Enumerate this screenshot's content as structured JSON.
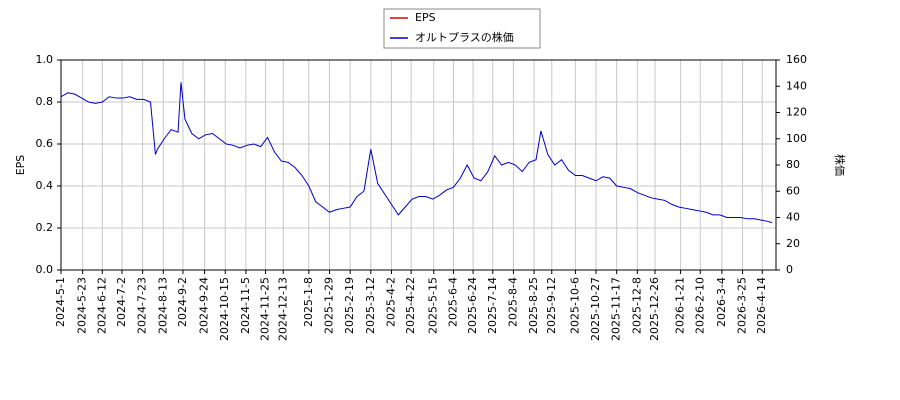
{
  "chart_data": {
    "type": "line",
    "x": [
      "2024-5-1",
      "2024-5-8",
      "2024-5-15",
      "2024-5-22",
      "2024-5-29",
      "2024-6-5",
      "2024-6-12",
      "2024-6-19",
      "2024-6-26",
      "2024-7-3",
      "2024-7-10",
      "2024-7-17",
      "2024-7-24",
      "2024-7-31",
      "2024-8-5",
      "2024-8-7",
      "2024-8-14",
      "2024-8-21",
      "2024-8-28",
      "2024-8-31",
      "2024-9-4",
      "2024-9-11",
      "2024-9-18",
      "2024-9-25",
      "2024-10-2",
      "2024-10-9",
      "2024-10-16",
      "2024-10-23",
      "2024-10-30",
      "2024-11-6",
      "2024-11-13",
      "2024-11-20",
      "2024-11-27",
      "2024-12-4",
      "2024-12-11",
      "2024-12-18",
      "2024-12-25",
      "2025-1-1",
      "2025-1-8",
      "2025-1-15",
      "2025-1-22",
      "2025-1-29",
      "2025-2-5",
      "2025-2-12",
      "2025-2-19",
      "2025-2-26",
      "2025-3-5",
      "2025-3-12",
      "2025-3-19",
      "2025-3-26",
      "2025-4-2",
      "2025-4-9",
      "2025-4-16",
      "2025-4-23",
      "2025-4-30",
      "2025-5-7",
      "2025-5-14",
      "2025-5-21",
      "2025-5-28",
      "2025-6-4",
      "2025-6-11",
      "2025-6-18",
      "2025-6-25",
      "2025-7-2",
      "2025-7-9",
      "2025-7-16",
      "2025-7-23",
      "2025-7-30",
      "2025-8-6",
      "2025-8-13",
      "2025-8-20",
      "2025-8-27",
      "2025-9-1",
      "2025-9-8",
      "2025-9-15",
      "2025-9-22",
      "2025-9-29",
      "2025-10-6",
      "2025-10-13",
      "2025-10-20",
      "2025-10-27",
      "2025-11-3",
      "2025-11-10",
      "2025-11-17",
      "2025-11-24",
      "2025-12-1",
      "2025-12-8",
      "2025-12-15",
      "2025-12-22",
      "2025-12-29",
      "2026-1-5",
      "2026-1-12",
      "2026-1-19",
      "2026-1-26",
      "2026-2-2",
      "2026-2-9",
      "2026-2-16",
      "2026-2-23",
      "2026-3-2",
      "2026-3-9",
      "2026-3-16",
      "2026-3-23",
      "2026-3-30",
      "2026-4-6",
      "2026-4-13",
      "2026-4-20",
      "2026-4-24"
    ],
    "series": [
      {
        "name": "EPS",
        "color": "#dd0000",
        "values": [
          null,
          null,
          null,
          null,
          null,
          null,
          null,
          null,
          null,
          null,
          null,
          null,
          null,
          null,
          null,
          null,
          null,
          null,
          null,
          null,
          null,
          null,
          null,
          null,
          null,
          null,
          null,
          null,
          null,
          null,
          null,
          null,
          null,
          null,
          null,
          null,
          null,
          null,
          null,
          null,
          null,
          null,
          null,
          null,
          null,
          null,
          null,
          null,
          null,
          null,
          null,
          null,
          null,
          null,
          null,
          null,
          null,
          null,
          null,
          null,
          null,
          null,
          null,
          null,
          null,
          null,
          null,
          null,
          null,
          null,
          null,
          null,
          null,
          null,
          null,
          null,
          null,
          null,
          null,
          null,
          null,
          null,
          null,
          null,
          null,
          null,
          null,
          null,
          null,
          null,
          null,
          null,
          null,
          null,
          null,
          null,
          null,
          null,
          null,
          null,
          null,
          null,
          null,
          null,
          null,
          null,
          null
        ]
      },
      {
        "name": "オルトプラスの株価",
        "color": "#0000cc",
        "axis": "y2",
        "values": [
          132,
          135,
          134,
          131,
          128,
          127,
          128,
          132,
          131,
          131,
          132,
          130,
          130,
          128,
          88,
          92,
          100,
          107,
          105,
          143,
          115,
          104,
          100,
          103,
          104,
          100,
          96,
          95,
          93,
          95,
          96,
          94,
          101,
          90,
          83,
          82,
          78,
          72,
          64,
          52,
          48,
          44,
          46,
          47,
          48,
          56,
          60,
          92,
          66,
          58,
          50,
          42,
          48,
          54,
          56,
          56,
          54,
          57,
          61,
          63,
          70,
          80,
          70,
          68,
          75,
          87,
          80,
          82,
          80,
          75,
          82,
          84,
          106,
          88,
          80,
          84,
          76,
          72,
          72,
          70,
          68,
          71,
          70,
          64,
          63,
          62,
          59,
          57,
          55,
          54,
          53,
          50,
          48,
          47,
          46,
          45,
          44,
          42,
          42,
          40,
          40,
          40,
          39,
          39,
          38,
          37,
          36
        ]
      }
    ],
    "xlim": [
      "2024-5-1",
      "2026-4-28"
    ],
    "xticks": [
      "2024-5-1",
      "2024-5-23",
      "2024-6-12",
      "2024-7-2",
      "2024-7-23",
      "2024-8-13",
      "2024-9-2",
      "2024-9-24",
      "2024-10-15",
      "2024-11-5",
      "2024-11-25",
      "2024-12-13",
      "2025-1-8",
      "2025-1-29",
      "2025-2-19",
      "2025-3-12",
      "2025-4-2",
      "2025-4-22",
      "2025-5-15",
      "2025-6-4",
      "2025-6-24",
      "2025-7-14",
      "2025-8-4",
      "2025-8-25",
      "2025-9-12",
      "2025-10-6",
      "2025-10-27",
      "2025-11-17",
      "2025-12-8",
      "2025-12-26",
      "2026-1-21",
      "2026-2-10",
      "2026-3-4",
      "2026-3-25",
      "2026-4-14"
    ],
    "ylabel": "EPS",
    "ylim": [
      0,
      1
    ],
    "yticks": [
      {
        "value": 0,
        "label": "0.0"
      },
      {
        "value": 0.2,
        "label": "0.2"
      },
      {
        "value": 0.4,
        "label": "0.4"
      },
      {
        "value": 0.6,
        "label": "0.6"
      },
      {
        "value": 0.8,
        "label": "0.8"
      },
      {
        "value": 1,
        "label": "1.0"
      }
    ],
    "y2label": "株価",
    "y2lim": [
      0,
      160
    ],
    "y2ticks": [
      0,
      20,
      40,
      60,
      80,
      100,
      120,
      140,
      160
    ],
    "grid": true,
    "legend": "top"
  }
}
